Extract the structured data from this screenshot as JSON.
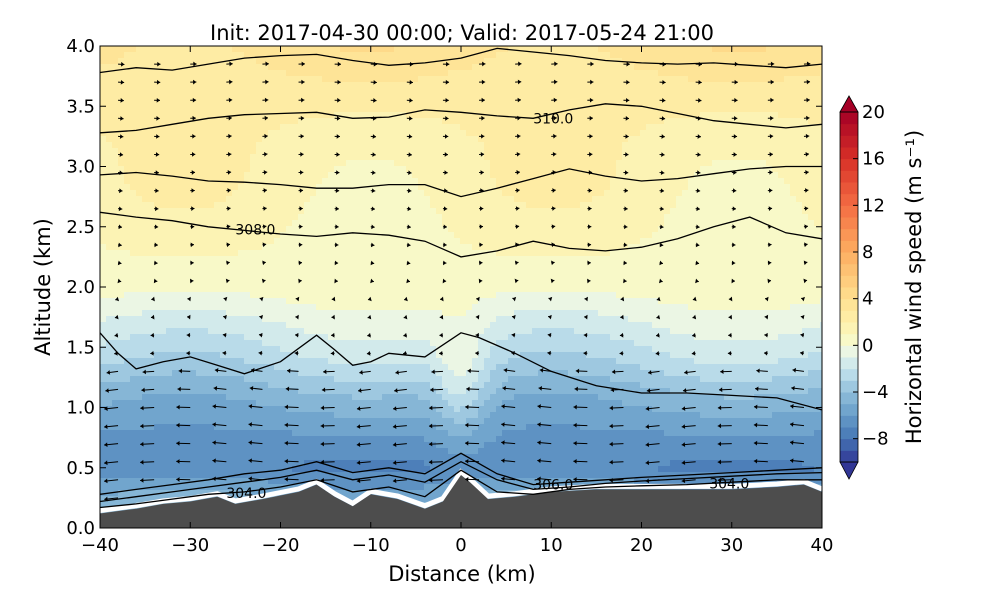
{
  "chart_data": {
    "type": "heatmap",
    "title": "Init: 2017-04-30 00:00; Valid: 2017-05-24 21:00",
    "xlabel": "Distance (km)",
    "ylabel": "Altitude (km)",
    "xlim": [
      -40,
      40
    ],
    "ylim": [
      0.0,
      4.0
    ],
    "xticks": [
      "−40",
      "−30",
      "−20",
      "−10",
      "0",
      "10",
      "20",
      "30",
      "40"
    ],
    "xtick_values": [
      -40,
      -30,
      -20,
      -10,
      0,
      10,
      20,
      30,
      40
    ],
    "yticks": [
      "0.0",
      "0.5",
      "1.0",
      "1.5",
      "2.0",
      "2.5",
      "3.0",
      "3.5",
      "4.0"
    ],
    "ytick_values": [
      0.0,
      0.5,
      1.0,
      1.5,
      2.0,
      2.5,
      3.0,
      3.5,
      4.0
    ],
    "colorbar": {
      "label": "Horizontal wind speed (m s⁻¹)",
      "range": [
        -10,
        20
      ],
      "step": 1,
      "extend": "both",
      "ticks": [
        "−8",
        "−4",
        "0",
        "4",
        "8",
        "12",
        "16",
        "20"
      ],
      "tick_values": [
        -8,
        -4,
        0,
        4,
        8,
        12,
        16,
        20
      ],
      "colormap": "RdYlBu_r"
    },
    "field_profile": {
      "altitude_km": [
        0.2,
        0.5,
        0.8,
        1.1,
        1.4,
        1.7,
        2.0,
        2.4,
        2.8,
        3.2,
        3.6,
        4.0
      ],
      "wind_speed_ms": [
        -4.5,
        -7.0,
        -6.0,
        -4.5,
        -2.5,
        -1.0,
        0.5,
        1.0,
        1.5,
        1.8,
        2.5,
        3.5
      ]
    },
    "terrain": {
      "x_km": [
        -40,
        -36,
        -33,
        -30,
        -27,
        -25,
        -22,
        -18,
        -16,
        -14,
        -12,
        -10,
        -7,
        -4,
        -2,
        0,
        1,
        3,
        6,
        10,
        15,
        20,
        25,
        30,
        35,
        38,
        40
      ],
      "height_km": [
        0.12,
        0.16,
        0.2,
        0.22,
        0.26,
        0.2,
        0.24,
        0.3,
        0.36,
        0.26,
        0.18,
        0.28,
        0.24,
        0.16,
        0.22,
        0.44,
        0.38,
        0.24,
        0.26,
        0.3,
        0.32,
        0.32,
        0.32,
        0.32,
        0.34,
        0.36,
        0.3
      ]
    },
    "terrain_color": "#4d4d4d",
    "contours": [
      {
        "label": "",
        "x_km": [
          -40,
          -36,
          -32,
          -28,
          -24,
          -20,
          -16,
          -12,
          -8,
          -4,
          0,
          4,
          8,
          12,
          16,
          20,
          24,
          28,
          32,
          36,
          40
        ],
        "alt_km": [
          3.78,
          3.82,
          3.8,
          3.85,
          3.9,
          3.92,
          3.93,
          3.88,
          3.84,
          3.86,
          3.9,
          3.98,
          3.95,
          3.92,
          3.88,
          3.86,
          3.85,
          3.86,
          3.84,
          3.82,
          3.85
        ]
      },
      {
        "label": "310.0",
        "x_km": [
          -40,
          -36,
          -32,
          -28,
          -24,
          -20,
          -16,
          -12,
          -8,
          -4,
          0,
          4,
          8,
          12,
          16,
          20,
          24,
          28,
          32,
          36,
          40
        ],
        "alt_km": [
          3.28,
          3.3,
          3.35,
          3.4,
          3.43,
          3.44,
          3.45,
          3.4,
          3.41,
          3.47,
          3.45,
          3.42,
          3.4,
          3.47,
          3.52,
          3.5,
          3.44,
          3.38,
          3.35,
          3.32,
          3.35
        ]
      },
      {
        "label": "",
        "x_km": [
          -40,
          -36,
          -32,
          -28,
          -24,
          -20,
          -16,
          -12,
          -8,
          -4,
          0,
          4,
          8,
          12,
          16,
          20,
          24,
          28,
          32,
          36,
          40
        ],
        "alt_km": [
          2.93,
          2.95,
          2.92,
          2.88,
          2.87,
          2.85,
          2.82,
          2.82,
          2.85,
          2.85,
          2.75,
          2.82,
          2.9,
          2.98,
          2.92,
          2.88,
          2.9,
          2.94,
          2.98,
          3.0,
          3.0
        ]
      },
      {
        "label": "308.0",
        "x_km": [
          -40,
          -36,
          -32,
          -28,
          -24,
          -20,
          -16,
          -12,
          -8,
          -4,
          0,
          4,
          8,
          12,
          16,
          20,
          24,
          28,
          32,
          36,
          40
        ],
        "alt_km": [
          2.62,
          2.58,
          2.55,
          2.5,
          2.47,
          2.44,
          2.42,
          2.45,
          2.43,
          2.38,
          2.25,
          2.3,
          2.38,
          2.32,
          2.3,
          2.33,
          2.4,
          2.5,
          2.58,
          2.45,
          2.4
        ]
      },
      {
        "label": "",
        "x_km": [
          -40,
          -38,
          -36,
          -33,
          -30,
          -27,
          -24,
          -20,
          -16,
          -14,
          -12,
          -10,
          -8,
          -4,
          0,
          2,
          6,
          10,
          15,
          20,
          25,
          30,
          35,
          40
        ],
        "alt_km": [
          1.62,
          1.45,
          1.32,
          1.38,
          1.42,
          1.35,
          1.28,
          1.38,
          1.6,
          1.48,
          1.35,
          1.38,
          1.45,
          1.42,
          1.62,
          1.58,
          1.45,
          1.3,
          1.18,
          1.12,
          1.12,
          1.1,
          1.08,
          0.98
        ]
      },
      {
        "label": "306.0",
        "x_km": [
          -40,
          -36,
          -32,
          -28,
          -24,
          -20,
          -16,
          -12,
          -8,
          -4,
          0,
          4,
          8,
          12,
          16,
          20,
          25,
          30,
          35,
          40
        ],
        "alt_km": [
          0.28,
          0.32,
          0.36,
          0.4,
          0.45,
          0.48,
          0.55,
          0.46,
          0.5,
          0.45,
          0.62,
          0.45,
          0.36,
          0.38,
          0.4,
          0.42,
          0.44,
          0.46,
          0.48,
          0.5
        ]
      },
      {
        "label": "",
        "x_km": [
          -40,
          -36,
          -32,
          -28,
          -24,
          -20,
          -16,
          -12,
          -8,
          -4,
          0,
          4,
          8,
          12,
          16,
          20,
          25,
          30,
          35,
          40
        ],
        "alt_km": [
          0.22,
          0.26,
          0.3,
          0.34,
          0.38,
          0.42,
          0.48,
          0.4,
          0.44,
          0.38,
          0.55,
          0.4,
          0.32,
          0.34,
          0.37,
          0.39,
          0.41,
          0.43,
          0.45,
          0.46
        ]
      },
      {
        "label": "304.0",
        "x_km": [
          -40,
          -36,
          -32,
          -28,
          -24,
          -20,
          -16,
          -12,
          -8,
          -4,
          0,
          4,
          8,
          12,
          16,
          20,
          25,
          30,
          35,
          40
        ],
        "alt_km": [
          0.17,
          0.2,
          0.24,
          0.28,
          0.3,
          0.34,
          0.4,
          0.3,
          0.34,
          0.26,
          0.48,
          0.3,
          0.28,
          0.32,
          0.34,
          0.35,
          0.36,
          0.38,
          0.4,
          0.4
        ]
      }
    ],
    "vectors": {
      "description": "quiver arrows of along-section wind",
      "low_level_direction": "westward (negative x)",
      "upper_level_direction": "eastward (positive x)"
    }
  }
}
